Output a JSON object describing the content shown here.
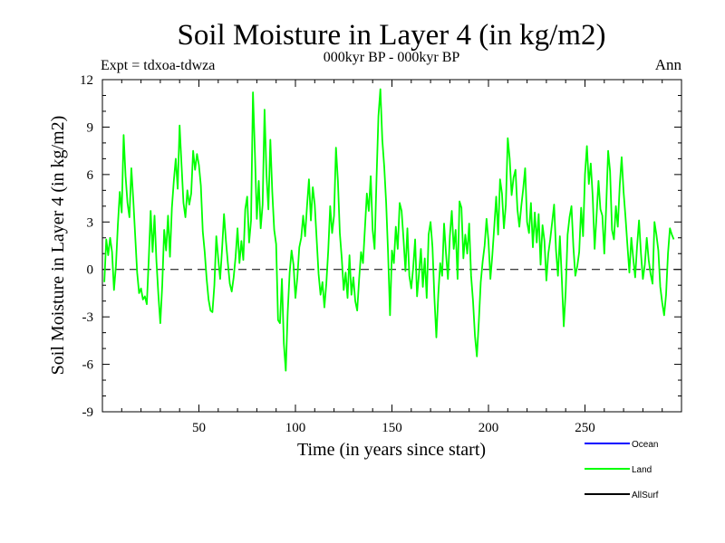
{
  "chart_data": {
    "type": "line",
    "title": "Soil Moisture in Layer 4 (in kg/m2)",
    "subtitle": "000kyr BP - 000kyr BP",
    "experiment_label": "Expt = tdxoa-tdwza",
    "season_label": "Ann",
    "xlabel": "Time (in years since start)",
    "ylabel": "Soil Moisture in Layer 4 (in kg/m2)",
    "xlim": [
      0,
      300
    ],
    "ylim": [
      -9,
      12
    ],
    "x_ticks": [
      50,
      100,
      150,
      200,
      250
    ],
    "y_ticks": [
      -9,
      -6,
      -3,
      0,
      3,
      6,
      9,
      12
    ],
    "zero_line": "dashed",
    "grid": false,
    "legend_position": "bottom-right, below plot",
    "legend": [
      {
        "name": "Ocean",
        "color": "#0000ff"
      },
      {
        "name": "Land",
        "color": "#00ff00"
      },
      {
        "name": "AllSurf",
        "color": "#000000"
      }
    ],
    "series": [
      {
        "name": "Land",
        "color": "#00ff00",
        "x_start": 1,
        "x_step": 1,
        "values": [
          -0.8,
          1.9,
          0.9,
          2.0,
          1.1,
          -1.3,
          0.2,
          2.8,
          4.9,
          3.6,
          8.5,
          5.9,
          4.2,
          3.3,
          6.4,
          4.4,
          2.1,
          -0.2,
          -1.5,
          -1.2,
          -1.9,
          -1.7,
          -2.2,
          0.6,
          3.7,
          1.1,
          3.4,
          0.5,
          -1.6,
          -3.4,
          -1.0,
          2.5,
          1.2,
          3.4,
          0.8,
          3.9,
          5.6,
          7.0,
          5.1,
          9.1,
          6.6,
          4.2,
          3.3,
          5.0,
          4.1,
          4.8,
          7.5,
          6.3,
          7.3,
          6.6,
          5.3,
          2.4,
          1.1,
          -0.6,
          -1.9,
          -2.6,
          -2.7,
          -1.0,
          2.1,
          0.7,
          -0.6,
          1.3,
          3.5,
          1.8,
          0.4,
          -0.9,
          -1.4,
          -0.5,
          0.8,
          2.6,
          0.4,
          1.8,
          0.6,
          3.8,
          4.6,
          1.7,
          3.1,
          11.2,
          7.4,
          3.2,
          5.6,
          2.6,
          4.1,
          10.1,
          6.0,
          3.8,
          8.2,
          4.9,
          2.5,
          1.6,
          -3.2,
          -3.4,
          -0.6,
          -4.7,
          -6.4,
          -2.7,
          -0.2,
          1.2,
          0.3,
          -1.8,
          -0.5,
          1.4,
          2.0,
          3.4,
          2.1,
          4.0,
          5.7,
          3.1,
          5.2,
          4.1,
          1.9,
          -0.3,
          -1.6,
          -0.8,
          -2.4,
          -0.9,
          1.2,
          4.0,
          2.3,
          3.4,
          7.7,
          5.6,
          2.3,
          0.7,
          -1.3,
          -0.2,
          -1.8,
          0.9,
          -1.6,
          -0.5,
          -2.0,
          -2.6,
          -0.6,
          1.1,
          0.4,
          2.6,
          4.8,
          3.7,
          5.9,
          2.5,
          1.3,
          5.7,
          9.7,
          11.4,
          8.2,
          6.5,
          4.2,
          1.0,
          -2.9,
          1.2,
          0.4,
          2.7,
          1.3,
          4.2,
          3.7,
          1.9,
          -0.1,
          2.6,
          -0.4,
          -1.2,
          0.1,
          1.9,
          -1.7,
          -0.3,
          1.3,
          -1.1,
          0.7,
          -1.8,
          2.2,
          3.0,
          1.4,
          -1.8,
          -4.3,
          -1.6,
          0.4,
          -0.4,
          2.9,
          1.0,
          -0.6,
          2.1,
          3.7,
          1.3,
          2.5,
          -0.6,
          4.3,
          3.9,
          0.7,
          2.2,
          1.0,
          2.9,
          -0.4,
          -2.0,
          -4.2,
          -5.5,
          -3.3,
          -0.8,
          0.5,
          1.5,
          3.2,
          1.8,
          -0.6,
          0.9,
          2.7,
          4.6,
          2.2,
          5.7,
          4.8,
          2.6,
          4.1,
          8.3,
          7.0,
          4.7,
          5.8,
          6.3,
          3.8,
          2.7,
          4.0,
          5.1,
          6.4,
          3.0,
          2.3,
          4.2,
          1.4,
          3.6,
          1.7,
          3.5,
          0.3,
          2.8,
          1.8,
          -0.7,
          1.0,
          1.9,
          3.0,
          4.1,
          1.2,
          -0.4,
          2.1,
          -0.6,
          -3.6,
          -1.4,
          2.2,
          3.3,
          4.0,
          1.4,
          -0.4,
          0.2,
          1.1,
          3.9,
          2.1,
          6.0,
          7.8,
          5.4,
          6.7,
          4.6,
          1.3,
          3.4,
          5.6,
          3.8,
          3.4,
          1.0,
          4.0,
          7.5,
          6.2,
          2.5,
          1.9,
          4.0,
          2.7,
          5.3,
          7.1,
          4.9,
          3.3,
          1.5,
          -0.2,
          2.0,
          0.7,
          -0.5,
          1.5,
          3.1,
          1.0,
          -0.6,
          0.3,
          2.0,
          0.6,
          -0.3,
          -0.9,
          3.0,
          2.2,
          1.2,
          -1.1,
          -2.1,
          -2.9,
          -1.6,
          1.0,
          2.6,
          2.2,
          1.9
        ]
      }
    ]
  }
}
